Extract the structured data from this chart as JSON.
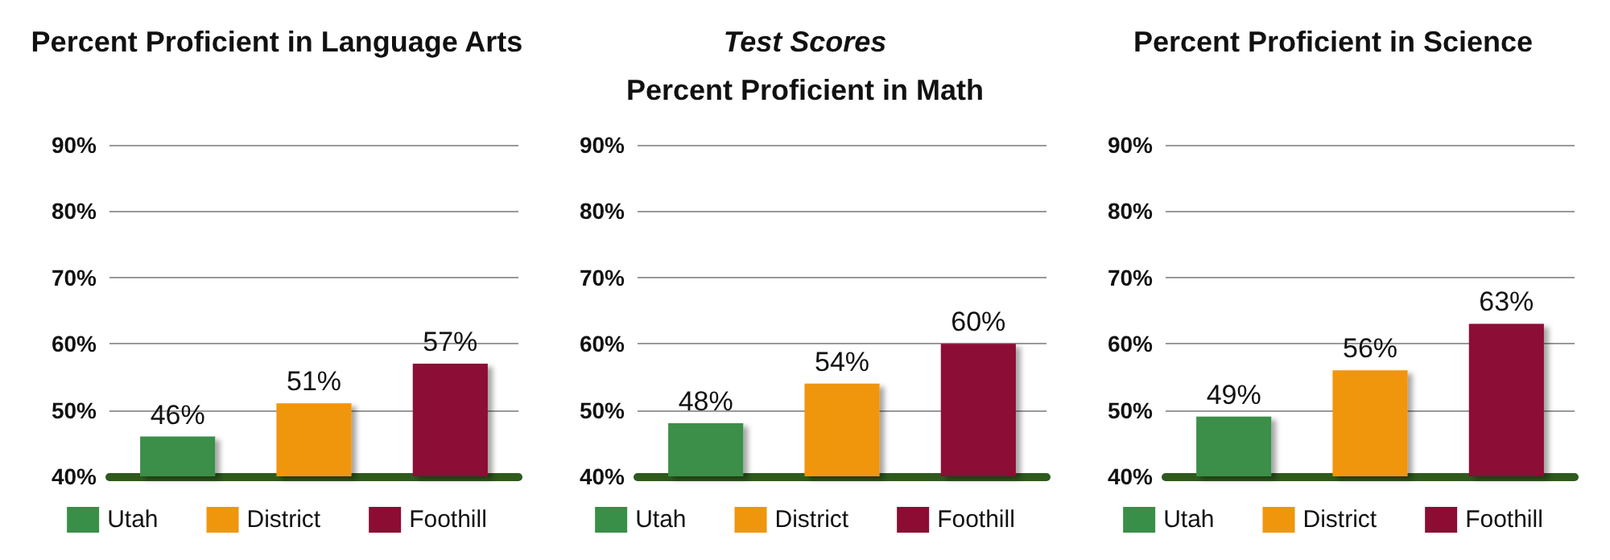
{
  "chart_data": [
    {
      "type": "bar",
      "title": "Percent Proficient in Language Arts",
      "categories": [
        null,
        null,
        null
      ],
      "series": [
        {
          "name": "Utah",
          "color": "#3a8f48",
          "values": [
            46,
            null,
            null
          ],
          "value_labels": [
            "46%",
            null,
            null
          ]
        },
        {
          "name": "District",
          "color": "#f0960c",
          "values": [
            null,
            51,
            null
          ],
          "value_labels": [
            null,
            "51%",
            null
          ]
        },
        {
          "name": "Foothill",
          "color": "#8c0c34",
          "values": [
            null,
            null,
            57
          ],
          "value_labels": [
            null,
            null,
            "57%"
          ]
        }
      ],
      "ylim": [
        40,
        90
      ],
      "yticks": [
        {
          "value": 40,
          "label": "40%"
        },
        {
          "value": 50,
          "label": "50%"
        },
        {
          "value": 60,
          "label": "60%"
        },
        {
          "value": 70,
          "label": "70%"
        },
        {
          "value": 80,
          "label": "80%"
        },
        {
          "value": 90,
          "label": "90%"
        }
      ],
      "grid": "y",
      "legend": "bottom",
      "tick_labels": "y"
    },
    {
      "type": "bar",
      "title": "Test Scores",
      "subtitle": "Percent Proficient in Math",
      "categories": [
        null,
        null,
        null
      ],
      "series": [
        {
          "name": "Utah",
          "color": "#3a8f48",
          "values": [
            48,
            null,
            null
          ],
          "value_labels": [
            "48%",
            null,
            null
          ]
        },
        {
          "name": "District",
          "color": "#f0960c",
          "values": [
            null,
            54,
            null
          ],
          "value_labels": [
            null,
            "54%",
            null
          ]
        },
        {
          "name": "Foothill",
          "color": "#8c0c34",
          "values": [
            null,
            null,
            60
          ],
          "value_labels": [
            null,
            null,
            "60%"
          ]
        }
      ],
      "ylim": [
        40,
        90
      ],
      "yticks": [
        {
          "value": 40,
          "label": "40%"
        },
        {
          "value": 50,
          "label": "50%"
        },
        {
          "value": 60,
          "label": "60%"
        },
        {
          "value": 70,
          "label": "70%"
        },
        {
          "value": 80,
          "label": "80%"
        },
        {
          "value": 90,
          "label": "90%"
        }
      ],
      "grid": "y",
      "legend": "bottom",
      "tick_labels": "y"
    },
    {
      "type": "bar",
      "title": "Percent Proficient in Science",
      "categories": [
        null,
        null,
        null
      ],
      "series": [
        {
          "name": "Utah",
          "color": "#3a8f48",
          "values": [
            49,
            null,
            null
          ],
          "value_labels": [
            "49%",
            null,
            null
          ]
        },
        {
          "name": "District",
          "color": "#f0960c",
          "values": [
            null,
            56,
            null
          ],
          "value_labels": [
            null,
            "56%",
            null
          ]
        },
        {
          "name": "Foothill",
          "color": "#8c0c34",
          "values": [
            null,
            null,
            63
          ],
          "value_labels": [
            null,
            null,
            "63%"
          ]
        }
      ],
      "ylim": [
        40,
        90
      ],
      "yticks": [
        {
          "value": 40,
          "label": "40%"
        },
        {
          "value": 50,
          "label": "50%"
        },
        {
          "value": 60,
          "label": "60%"
        },
        {
          "value": 70,
          "label": "70%"
        },
        {
          "value": 80,
          "label": "80%"
        },
        {
          "value": 90,
          "label": "90%"
        }
      ],
      "grid": "y",
      "legend": "bottom",
      "tick_labels": "y"
    }
  ]
}
